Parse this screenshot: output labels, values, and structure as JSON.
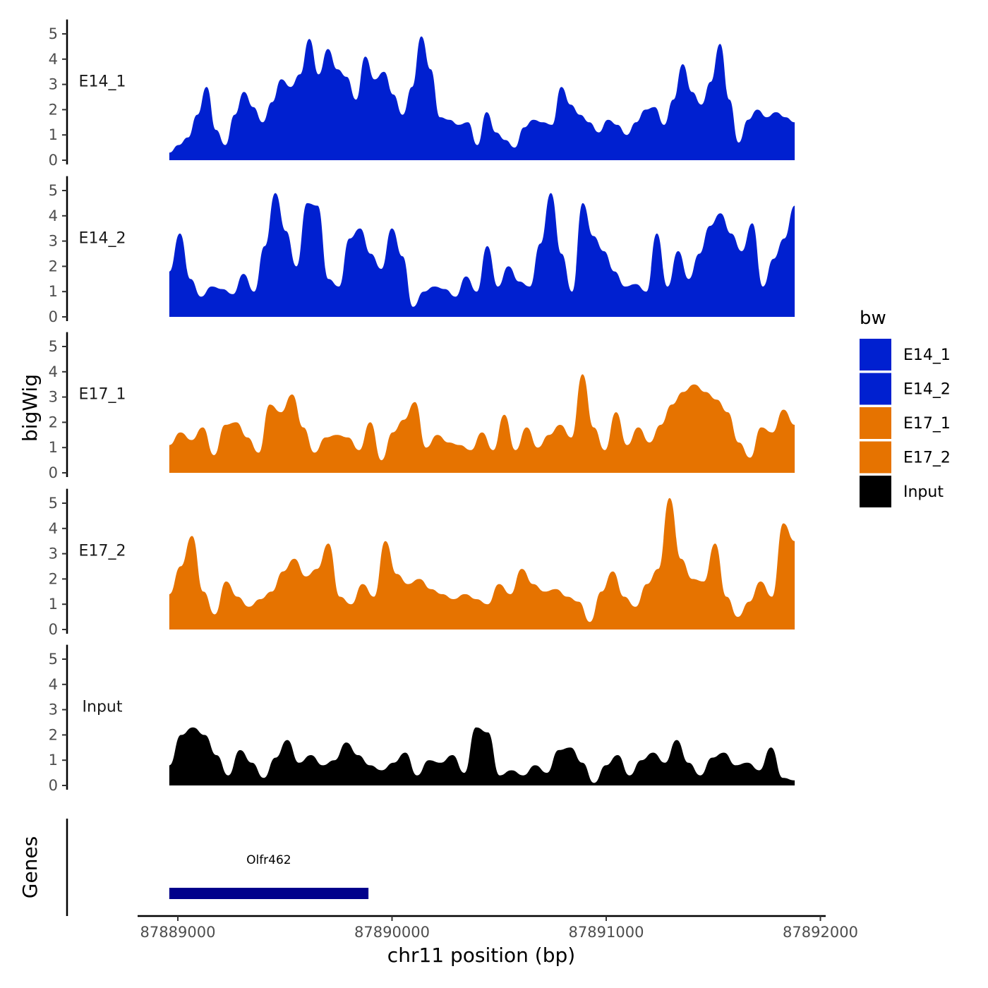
{
  "chart_data": {
    "type": "area",
    "subtype": "genome-coverage-tracks",
    "ylabel": "bigWig",
    "xlabel": "chr11 position (bp)",
    "xlim": [
      87888800,
      87892000
    ],
    "xticks": [
      {
        "value": 87889000,
        "label": "87889000"
      },
      {
        "value": 87890000,
        "label": "87890000"
      },
      {
        "value": 87891000,
        "label": "87891000"
      },
      {
        "value": 87892000,
        "label": "87892000"
      }
    ],
    "ylim": [
      0,
      5.4
    ],
    "yticks": [
      "0",
      "1",
      "2",
      "3",
      "4",
      "5"
    ],
    "legend": {
      "title": "bw",
      "position": "right",
      "entries": [
        {
          "label": "E14_1",
          "color": "#0020D0"
        },
        {
          "label": "E14_2",
          "color": "#0020D0"
        },
        {
          "label": "E17_1",
          "color": "#E67300"
        },
        {
          "label": "E17_2",
          "color": "#E67300"
        },
        {
          "label": "Input",
          "color": "#000000"
        }
      ]
    },
    "series": [
      {
        "name": "E14_1",
        "color": "#0020D0",
        "x_start": 87888960,
        "x_end": 87891880,
        "values": [
          0.3,
          0.6,
          0.9,
          1.8,
          2.9,
          1.2,
          0.6,
          1.8,
          2.7,
          2.1,
          1.5,
          2.3,
          3.2,
          2.9,
          3.4,
          4.8,
          3.4,
          4.4,
          3.6,
          3.3,
          2.4,
          4.1,
          3.2,
          3.5,
          2.6,
          1.8,
          2.9,
          4.9,
          3.6,
          1.7,
          1.6,
          1.4,
          1.5,
          0.6,
          1.9,
          1.1,
          0.8,
          0.5,
          1.3,
          1.6,
          1.5,
          1.4,
          2.9,
          2.2,
          1.8,
          1.5,
          1.1,
          1.6,
          1.4,
          1.0,
          1.5,
          2.0,
          2.1,
          1.4,
          2.4,
          3.8,
          2.7,
          2.2,
          3.1,
          4.6,
          2.4,
          0.7,
          1.6,
          2.0,
          1.7,
          1.9,
          1.7,
          1.5
        ]
      },
      {
        "name": "E14_2",
        "color": "#0020D0",
        "x_start": 87888960,
        "x_end": 87891880,
        "values": [
          1.8,
          3.3,
          1.5,
          0.8,
          1.2,
          1.1,
          0.9,
          1.7,
          1.0,
          2.8,
          4.9,
          3.4,
          2.0,
          4.5,
          4.4,
          1.5,
          1.2,
          3.1,
          3.5,
          2.5,
          1.9,
          3.5,
          2.4,
          0.4,
          1.0,
          1.2,
          1.1,
          0.8,
          1.6,
          1.0,
          2.8,
          1.2,
          2.0,
          1.4,
          1.2,
          2.9,
          4.9,
          2.5,
          1.0,
          4.5,
          3.2,
          2.6,
          1.8,
          1.2,
          1.3,
          1.0,
          3.3,
          1.2,
          2.6,
          1.5,
          2.5,
          3.6,
          4.1,
          3.3,
          2.6,
          3.7,
          1.2,
          2.3,
          3.1,
          4.4
        ]
      },
      {
        "name": "E17_1",
        "color": "#E67300",
        "x_start": 87888960,
        "x_end": 87891880,
        "values": [
          1.1,
          1.6,
          1.3,
          1.8,
          0.7,
          1.9,
          2.0,
          1.4,
          0.8,
          2.7,
          2.4,
          3.1,
          1.8,
          0.8,
          1.4,
          1.5,
          1.4,
          0.9,
          2.0,
          0.5,
          1.6,
          2.1,
          2.8,
          1.0,
          1.5,
          1.2,
          1.1,
          0.9,
          1.6,
          0.9,
          2.3,
          0.9,
          1.8,
          1.0,
          1.5,
          1.9,
          1.4,
          3.9,
          1.8,
          0.9,
          2.4,
          1.1,
          1.8,
          1.2,
          1.9,
          2.7,
          3.2,
          3.5,
          3.2,
          2.9,
          2.4,
          1.2,
          0.6,
          1.8,
          1.6,
          2.5,
          1.9
        ]
      },
      {
        "name": "E17_2",
        "color": "#E67300",
        "x_start": 87888960,
        "x_end": 87891880,
        "values": [
          1.4,
          2.5,
          3.7,
          1.5,
          0.6,
          1.9,
          1.3,
          0.9,
          1.2,
          1.5,
          2.3,
          2.8,
          2.1,
          2.4,
          3.4,
          1.3,
          1.0,
          1.8,
          1.3,
          3.5,
          2.2,
          1.8,
          2.0,
          1.6,
          1.4,
          1.2,
          1.4,
          1.2,
          1.0,
          1.8,
          1.4,
          2.4,
          1.8,
          1.5,
          1.6,
          1.3,
          1.1,
          0.3,
          1.5,
          2.3,
          1.3,
          0.9,
          1.8,
          2.4,
          5.2,
          2.8,
          2.0,
          1.9,
          3.4,
          1.3,
          0.5,
          1.1,
          1.9,
          1.3,
          4.2,
          3.5
        ]
      },
      {
        "name": "Input",
        "color": "#000000",
        "x_start": 87888960,
        "x_end": 87891880,
        "values": [
          0.8,
          2.0,
          2.3,
          2.0,
          1.2,
          0.4,
          1.4,
          0.9,
          0.3,
          1.1,
          1.8,
          0.9,
          1.2,
          0.8,
          1.0,
          1.7,
          1.2,
          0.8,
          0.6,
          0.9,
          1.3,
          0.4,
          1.0,
          0.9,
          1.2,
          0.5,
          2.3,
          2.1,
          0.4,
          0.6,
          0.4,
          0.8,
          0.5,
          1.4,
          1.5,
          0.9,
          0.1,
          0.8,
          1.2,
          0.4,
          1.0,
          1.3,
          0.9,
          1.8,
          0.9,
          0.4,
          1.1,
          1.3,
          0.8,
          0.9,
          0.6,
          1.5,
          0.3,
          0.2
        ]
      }
    ],
    "genes": {
      "track_label": "Genes",
      "items": [
        {
          "name": "Olfr462",
          "start": 87888960,
          "end": 87889890,
          "color": "#00008B"
        }
      ]
    }
  }
}
